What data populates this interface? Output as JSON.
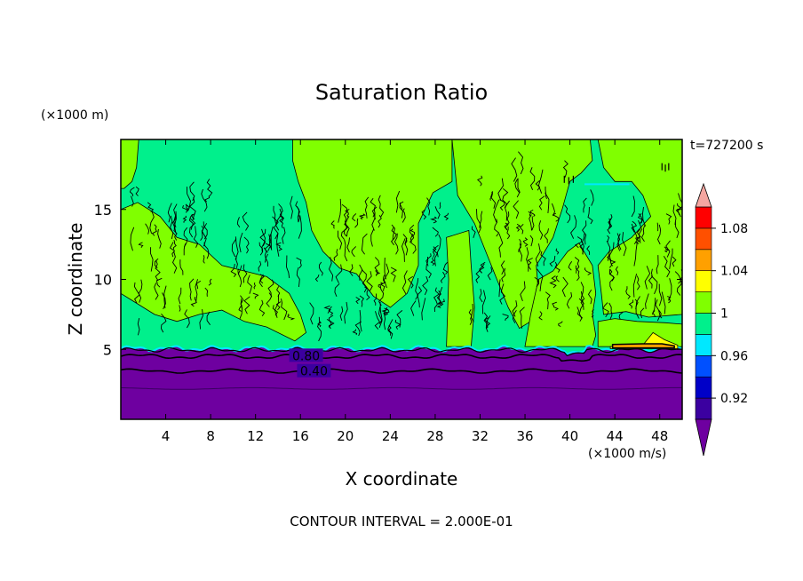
{
  "chart_data": {
    "type": "contour",
    "title": "Saturation Ratio",
    "xlabel": "X coordinate",
    "ylabel": "Z coordinate",
    "x_unit": "(×1000 m/s)",
    "y_unit": "(×1000 m)",
    "time_label": "t=727200 s",
    "footer": "CONTOUR INTERVAL = 2.000E-01",
    "xlim": [
      0,
      50
    ],
    "ylim": [
      0,
      20
    ],
    "x_ticks": [
      4,
      8,
      12,
      16,
      20,
      24,
      28,
      32,
      36,
      40,
      44,
      48
    ],
    "y_ticks": [
      5,
      10,
      15
    ],
    "contour_labels": [
      {
        "text": "0.80",
        "x": 16.5,
        "y": 4.55
      },
      {
        "text": "0.40",
        "x": 17.2,
        "y": 3.45
      }
    ],
    "boundary_level_km": 5.0,
    "colorbar": {
      "levels": [
        0.9,
        0.92,
        0.94,
        0.96,
        0.98,
        1.0,
        1.02,
        1.04,
        1.06,
        1.08,
        1.1
      ],
      "labels": [
        "0.92",
        "0.96",
        "1",
        "1.04",
        "1.08"
      ],
      "colors": [
        "#3b00a0",
        "#0000c8",
        "#0050ff",
        "#00e8ff",
        "#00f08c",
        "#80ff00",
        "#ffff00",
        "#ffa000",
        "#ff5000",
        "#ff0000"
      ],
      "under_color": "#6e00a0",
      "over_color": "#f4a6a0"
    }
  }
}
